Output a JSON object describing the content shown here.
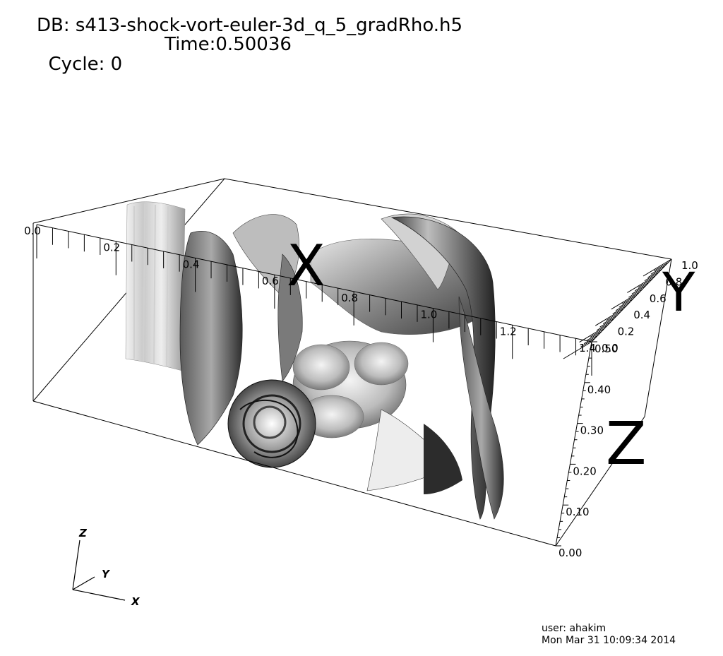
{
  "header": {
    "db": "DB: s413-shock-vort-euler-3d_q_5_gradRho.h5",
    "cycle": "Cycle: 0",
    "time": "Time:0.50036"
  },
  "axes": {
    "x": {
      "title": "X",
      "ticks": [
        "0.0",
        "0.2",
        "0.4",
        "0.6",
        "0.8",
        "1.0",
        "1.2",
        "1.4"
      ]
    },
    "y": {
      "title": "Y",
      "ticks": [
        "0.0",
        "0.2",
        "0.4",
        "0.6",
        "0.8",
        "1.0"
      ]
    },
    "z": {
      "title": "Z",
      "ticks": [
        "0.00",
        "0.10",
        "0.20",
        "0.30",
        "0.40",
        "0.50"
      ]
    }
  },
  "triad": {
    "x": "X",
    "y": "Y",
    "z": "Z"
  },
  "footer": {
    "user": "user: ahakim",
    "date": "Mon Mar 31 10:09:34 2014"
  }
}
